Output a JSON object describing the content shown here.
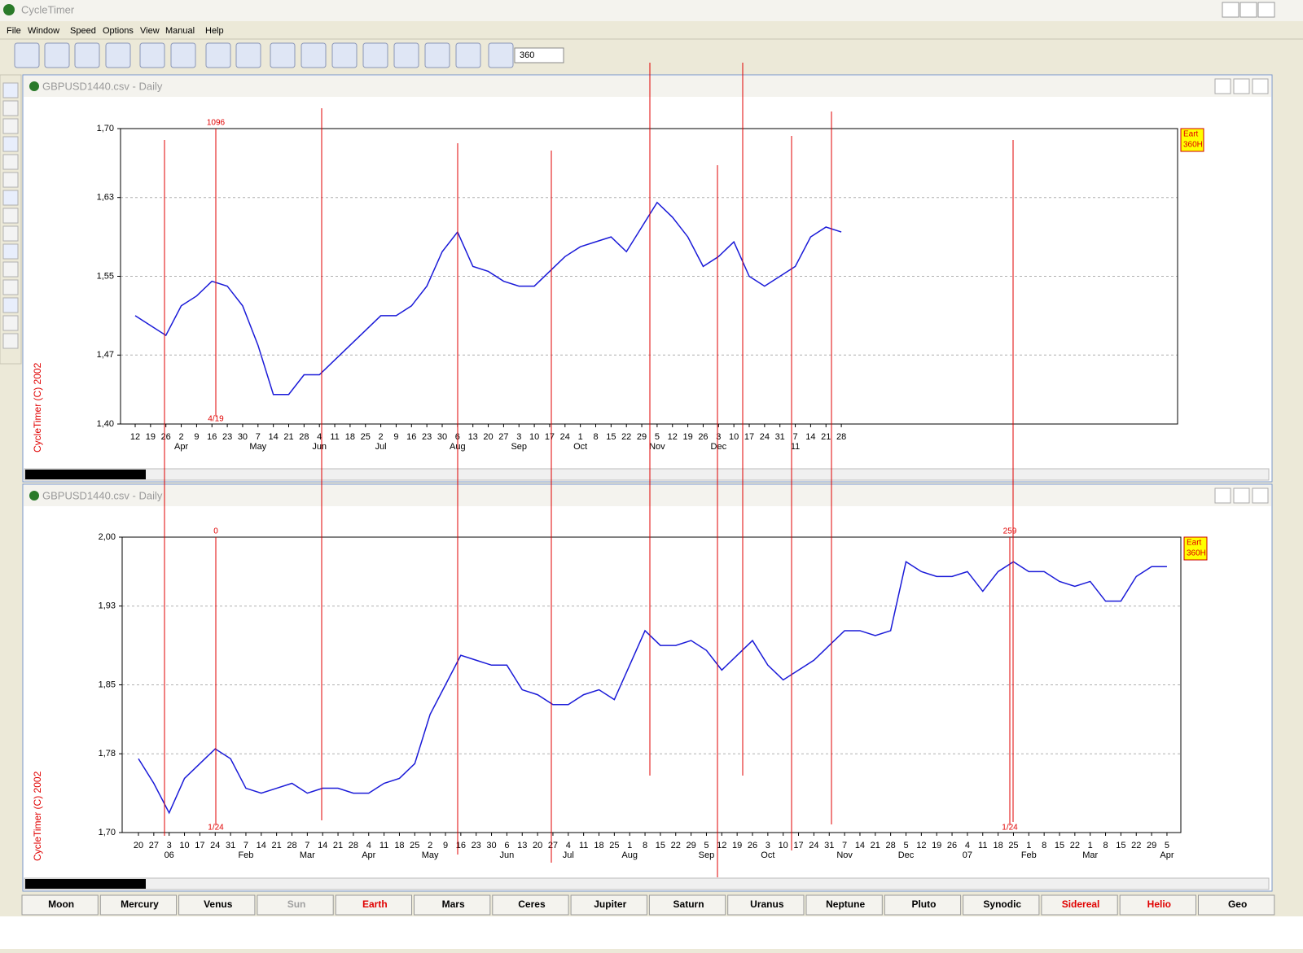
{
  "window": {
    "title": "CycleTimer"
  },
  "menu": [
    "File",
    "Window",
    "Speed",
    "Options",
    "View",
    "Manual",
    "Help"
  ],
  "toolbar": {
    "input": "360"
  },
  "chart_data": [
    {
      "type": "line",
      "window_title": "GBPUSD1440.csv - Daily",
      "copyright": "CycleTimer (C) 2002",
      "categories": [
        "12",
        "19",
        "26",
        "2",
        "9",
        "16",
        "23",
        "30",
        "7",
        "14",
        "21",
        "28",
        "4",
        "11",
        "18",
        "25",
        "2",
        "9",
        "16",
        "23",
        "30",
        "6",
        "13",
        "20",
        "27",
        "3",
        "10",
        "17",
        "24",
        "1",
        "8",
        "15",
        "22",
        "29",
        "5",
        "12",
        "19",
        "26",
        "3",
        "10",
        "17",
        "24",
        "31",
        "7",
        "14",
        "21",
        "28"
      ],
      "months": [
        null,
        null,
        null,
        "Apr",
        null,
        null,
        null,
        null,
        "May",
        null,
        null,
        null,
        "Jun",
        null,
        null,
        null,
        "Jul",
        null,
        null,
        null,
        null,
        "Aug",
        null,
        null,
        null,
        "Sep",
        null,
        null,
        null,
        "Oct",
        null,
        null,
        null,
        null,
        "Nov",
        null,
        null,
        null,
        "Dec",
        null,
        null,
        null,
        null,
        "11",
        null,
        null,
        null
      ],
      "series": [
        {
          "color": "#1a1ad8",
          "values": [
            1.51,
            1.5,
            1.49,
            1.52,
            1.53,
            1.545,
            1.54,
            1.52,
            1.48,
            1.43,
            1.43,
            1.45,
            1.45,
            1.465,
            1.48,
            1.495,
            1.51,
            1.51,
            1.52,
            1.54,
            1.575,
            1.595,
            1.56,
            1.555,
            1.545,
            1.54,
            1.54,
            1.555,
            1.57,
            1.58,
            1.585,
            1.59,
            1.575,
            1.6,
            1.625,
            1.61,
            1.59,
            1.56,
            1.57,
            1.585,
            1.55,
            1.54,
            1.55,
            1.56,
            1.59,
            1.6,
            1.595
          ]
        }
      ],
      "ylim": [
        1.4,
        1.7
      ],
      "yticks": [
        {
          "value": 1.4,
          "label": "1,40"
        },
        {
          "value": 1.47,
          "label": "1,47"
        },
        {
          "value": 1.55,
          "label": "1,55"
        },
        {
          "value": 1.63,
          "label": "1,63"
        },
        {
          "value": 1.7,
          "label": "1,70"
        }
      ],
      "grid": true,
      "marker": {
        "top": "1096",
        "bottom": "4/19"
      },
      "legend": [
        "Eart",
        "360H"
      ]
    },
    {
      "type": "line",
      "window_title": "GBPUSD1440.csv - Daily",
      "copyright": "CycleTimer (C) 2002",
      "categories": [
        "20",
        "27",
        "3",
        "10",
        "17",
        "24",
        "31",
        "7",
        "14",
        "21",
        "28",
        "7",
        "14",
        "21",
        "28",
        "4",
        "11",
        "18",
        "25",
        "2",
        "9",
        "16",
        "23",
        "30",
        "6",
        "13",
        "20",
        "27",
        "4",
        "11",
        "18",
        "25",
        "1",
        "8",
        "15",
        "22",
        "29",
        "5",
        "12",
        "19",
        "26",
        "3",
        "10",
        "17",
        "24",
        "31",
        "7",
        "14",
        "21",
        "28",
        "5",
        "12",
        "19",
        "26",
        "4",
        "11",
        "18",
        "25",
        "1",
        "8",
        "15",
        "22",
        "1",
        "8",
        "15",
        "22",
        "29",
        "5"
      ],
      "months": [
        null,
        null,
        "06",
        null,
        null,
        null,
        null,
        "Feb",
        null,
        null,
        null,
        "Mar",
        null,
        null,
        null,
        "Apr",
        null,
        null,
        null,
        "May",
        null,
        null,
        null,
        null,
        "Jun",
        null,
        null,
        null,
        "Jul",
        null,
        null,
        null,
        "Aug",
        null,
        null,
        null,
        null,
        "Sep",
        null,
        null,
        null,
        "Oct",
        null,
        null,
        null,
        null,
        "Nov",
        null,
        null,
        null,
        "Dec",
        null,
        null,
        null,
        "07",
        null,
        null,
        null,
        "Feb",
        null,
        null,
        null,
        "Mar",
        null,
        null,
        null,
        null,
        "Apr"
      ],
      "series": [
        {
          "color": "#1a1ad8",
          "values": [
            1.775,
            1.75,
            1.72,
            1.755,
            1.77,
            1.785,
            1.775,
            1.745,
            1.74,
            1.745,
            1.75,
            1.74,
            1.745,
            1.745,
            1.74,
            1.74,
            1.75,
            1.755,
            1.77,
            1.82,
            1.85,
            1.88,
            1.875,
            1.87,
            1.87,
            1.845,
            1.84,
            1.83,
            1.83,
            1.84,
            1.845,
            1.835,
            1.87,
            1.905,
            1.89,
            1.89,
            1.895,
            1.885,
            1.865,
            1.88,
            1.895,
            1.87,
            1.855,
            1.865,
            1.875,
            1.89,
            1.905,
            1.905,
            1.9,
            1.905,
            1.975,
            1.965,
            1.96,
            1.96,
            1.965,
            1.945,
            1.965,
            1.975,
            1.965,
            1.965,
            1.955,
            1.95,
            1.955,
            1.935,
            1.935,
            1.96,
            1.97,
            1.97
          ]
        }
      ],
      "ylim": [
        1.7,
        2.0
      ],
      "yticks": [
        {
          "value": 1.7,
          "label": "1,70"
        },
        {
          "value": 1.78,
          "label": "1,78"
        },
        {
          "value": 1.85,
          "label": "1,85"
        },
        {
          "value": 1.93,
          "label": "1,93"
        },
        {
          "value": 2.0,
          "label": "2,00"
        }
      ],
      "grid": true,
      "marker": {
        "top": "0",
        "bottom": "1/24"
      },
      "marker2": {
        "top": "259",
        "bottom": "1/24"
      },
      "legend": [
        "Eart",
        "360H"
      ]
    }
  ],
  "tabs": [
    {
      "label": "Moon",
      "color": "#000000"
    },
    {
      "label": "Mercury",
      "color": "#000000"
    },
    {
      "label": "Venus",
      "color": "#000000"
    },
    {
      "label": "Sun",
      "color": "#a0a0a0"
    },
    {
      "label": "Earth",
      "color": "#e00000"
    },
    {
      "label": "Mars",
      "color": "#000000"
    },
    {
      "label": "Ceres",
      "color": "#000000"
    },
    {
      "label": "Jupiter",
      "color": "#000000"
    },
    {
      "label": "Saturn",
      "color": "#000000"
    },
    {
      "label": "Uranus",
      "color": "#000000"
    },
    {
      "label": "Neptune",
      "color": "#000000"
    },
    {
      "label": "Pluto",
      "color": "#000000"
    },
    {
      "label": "Synodic",
      "color": "#000000"
    },
    {
      "label": "Sidereal",
      "color": "#e00000"
    },
    {
      "label": "Helio",
      "color": "#e00000"
    },
    {
      "label": "Geo",
      "color": "#000000"
    }
  ]
}
